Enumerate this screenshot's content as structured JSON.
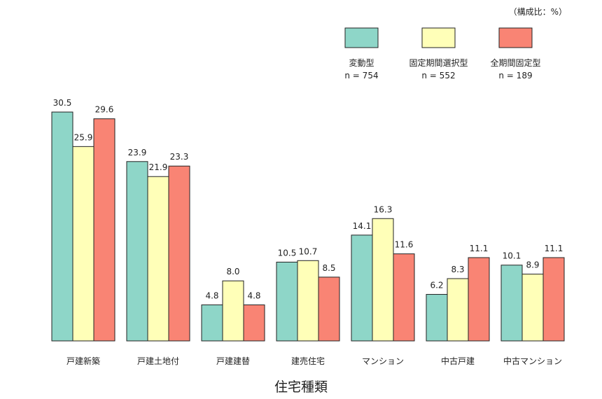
{
  "chart_data": {
    "type": "bar",
    "unit_note": "（構成比：%）",
    "xlabel": "住宅種類",
    "ylabel": "",
    "ylim": [
      0,
      35
    ],
    "categories": [
      "戸建新築",
      "戸建土地付",
      "戸建建替",
      "建売住宅",
      "マンション",
      "中古戸建",
      "中古マンション"
    ],
    "series": [
      {
        "name": "変動型",
        "n_label": "n = 754",
        "color": "#8ed6c8",
        "values": [
          30.5,
          23.9,
          4.8,
          10.5,
          14.1,
          6.2,
          10.1
        ],
        "labels": [
          "30.5",
          "23.9",
          "4.8",
          "10.5",
          "14.1",
          "6.2",
          "10.1"
        ]
      },
      {
        "name": "固定期間選択型",
        "n_label": "n = 552",
        "color": "#ffffb8",
        "values": [
          25.9,
          21.9,
          8.0,
          10.7,
          16.3,
          8.3,
          8.9
        ],
        "labels": [
          "25.9",
          "21.9",
          "8.0",
          "10.7",
          "16.3",
          "8.3",
          "8.9"
        ]
      },
      {
        "name": "全期間固定型",
        "n_label": "n = 189",
        "color": "#f98474",
        "values": [
          29.6,
          23.3,
          4.8,
          8.5,
          11.6,
          11.1,
          11.1
        ],
        "labels": [
          "29.6",
          "23.3",
          "4.8",
          "8.5",
          "11.6",
          "11.1",
          "11.1"
        ]
      }
    ]
  }
}
